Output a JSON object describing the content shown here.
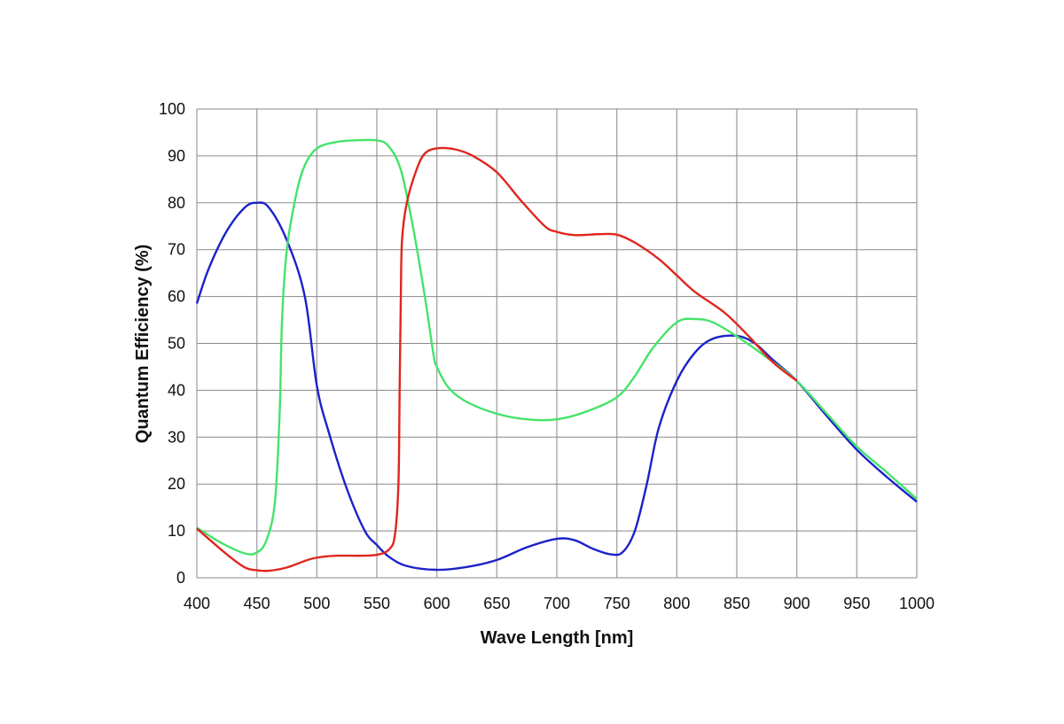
{
  "chart_data": {
    "type": "line",
    "title": "",
    "xlabel": "Wave Length [nm]",
    "ylabel": "Quantum Efficiency (%)",
    "xlim": [
      400,
      1000
    ],
    "ylim": [
      0,
      100
    ],
    "grid": true,
    "legend": "none",
    "xticks": [
      "400",
      "450",
      "500",
      "550",
      "600",
      "650",
      "700",
      "750",
      "800",
      "850",
      "900",
      "950",
      "1000"
    ],
    "yticks": [
      "0",
      "10",
      "20",
      "30",
      "40",
      "50",
      "60",
      "70",
      "80",
      "90",
      "100"
    ],
    "series": [
      {
        "color": "#1a23c8",
        "x": [
          400,
          410,
          425,
          440,
          450,
          460,
          475,
          490,
          500,
          510,
          525,
          540,
          550,
          560,
          575,
          600,
          625,
          650,
          675,
          700,
          715,
          730,
          745,
          755,
          765,
          775,
          785,
          800,
          815,
          830,
          850,
          865,
          880,
          900,
          925,
          950,
          975,
          1000
        ],
        "y": [
          58.5,
          66,
          74,
          79,
          80,
          79,
          72,
          60,
          41,
          31,
          19,
          10,
          7,
          4.5,
          2.5,
          1.7,
          2.3,
          3.8,
          6.5,
          8.3,
          8,
          6.2,
          5,
          5.5,
          10,
          20,
          32,
          42,
          48,
          51,
          51.6,
          50,
          46.5,
          42,
          34.5,
          27.3,
          21.5,
          16.2
        ]
      },
      {
        "color": "#44e36a",
        "x": [
          400,
          420,
          440,
          450,
          458,
          465,
          469,
          471,
          475,
          483,
          490,
          500,
          515,
          530,
          550,
          560,
          570,
          580,
          590,
          597,
          600,
          610,
          625,
          650,
          675,
          700,
          725,
          750,
          765,
          780,
          800,
          815,
          830,
          850,
          875,
          900,
          925,
          950,
          975,
          1000
        ],
        "y": [
          10.7,
          7.5,
          5.2,
          5.4,
          8,
          16,
          35,
          55,
          70,
          82,
          88,
          91.6,
          92.9,
          93.3,
          93.3,
          92,
          87,
          75,
          60,
          48,
          45,
          40.5,
          37.5,
          35,
          33.8,
          33.8,
          35.5,
          38.5,
          43,
          49,
          54.5,
          55.2,
          54.5,
          51.5,
          47,
          42,
          35,
          28,
          22.5,
          16.8
        ]
      },
      {
        "color": "#e0261e",
        "x": [
          400,
          425,
          440,
          450,
          460,
          475,
          490,
          500,
          515,
          535,
          550,
          560,
          565,
          568,
          569,
          570,
          571,
          575,
          583,
          590,
          600,
          615,
          630,
          650,
          670,
          690,
          700,
          715,
          735,
          750,
          765,
          785,
          800,
          815,
          840,
          860,
          880,
          900
        ],
        "y": [
          10.5,
          5,
          2.2,
          1.6,
          1.5,
          2.2,
          3.6,
          4.3,
          4.7,
          4.7,
          4.9,
          6,
          9,
          20,
          40,
          60,
          72,
          80,
          87,
          90.5,
          91.6,
          91.4,
          90,
          86.5,
          80.5,
          75,
          73.8,
          73.1,
          73.3,
          73.2,
          71.5,
          68,
          64.5,
          61,
          56.5,
          51.5,
          46,
          42
        ]
      }
    ]
  }
}
